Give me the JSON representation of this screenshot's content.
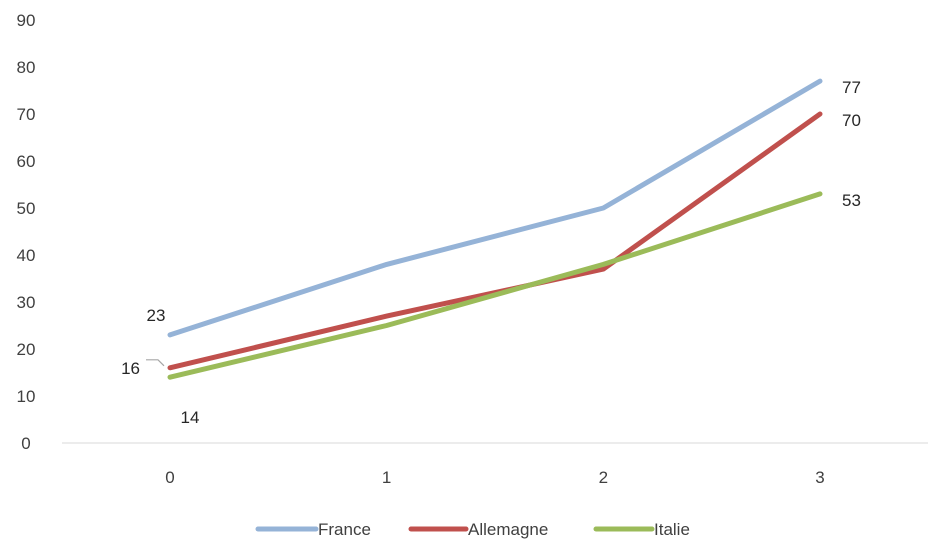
{
  "chart_data": {
    "type": "line",
    "x": [
      0,
      1,
      2,
      3
    ],
    "ylim": [
      0,
      90
    ],
    "yticks": [
      0,
      10,
      20,
      30,
      40,
      50,
      60,
      70,
      80,
      90
    ],
    "grid": false,
    "legend": "bottom",
    "series": [
      {
        "name": "France",
        "values": [
          23,
          38,
          50,
          77
        ],
        "color": "#95B3D7",
        "labels": [
          "23",
          null,
          null,
          "77"
        ]
      },
      {
        "name": "Allemagne",
        "values": [
          16,
          27,
          37,
          70
        ],
        "color": "#C0504D",
        "labels": [
          "16",
          null,
          null,
          "70"
        ]
      },
      {
        "name": "Italie",
        "values": [
          14,
          25,
          38,
          53
        ],
        "color": "#9BBB59",
        "labels": [
          "14",
          null,
          null,
          "53"
        ]
      }
    ]
  }
}
